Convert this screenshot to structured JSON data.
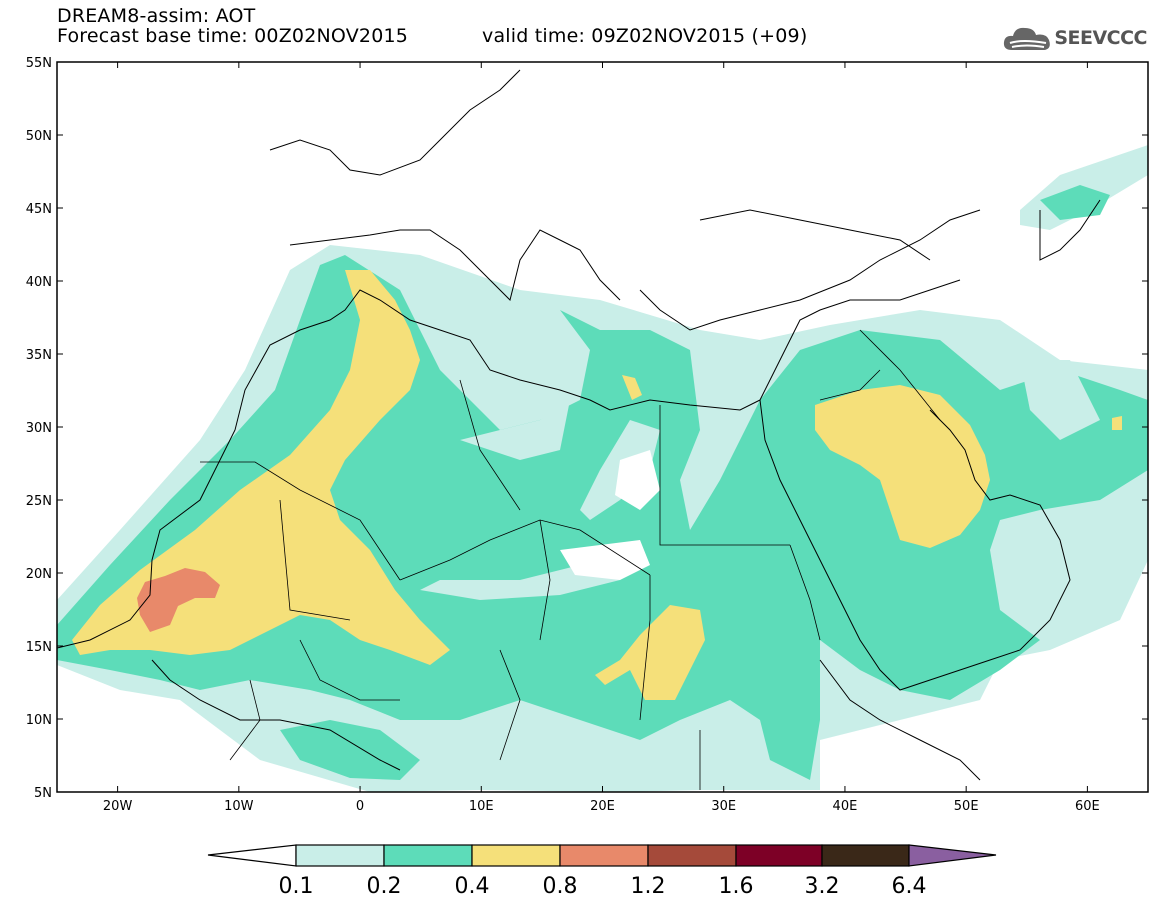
{
  "header": {
    "title_line1": "DREAM8-assim: AOT",
    "base_time": "Forecast base time: 00Z02NOV2015",
    "valid_time": "valid time: 09Z02NOV2015 (+09)",
    "logo_text": "SEEVCCC",
    "logo_icon": "cloud-icon"
  },
  "map": {
    "lon_range": [
      -25,
      65
    ],
    "lat_range": [
      5,
      55
    ],
    "lat_ticks": [
      "55N",
      "50N",
      "45N",
      "40N",
      "35N",
      "30N",
      "25N",
      "20N",
      "15N",
      "10N",
      "5N"
    ],
    "lon_ticks": [
      "20W",
      "10W",
      "0",
      "10E",
      "20E",
      "30E",
      "40E",
      "50E",
      "60E"
    ]
  },
  "colorbar": {
    "levels": [
      "0.1",
      "0.2",
      "0.4",
      "0.8",
      "1.2",
      "1.6",
      "3.2",
      "6.4"
    ],
    "colors": [
      "#ffffff",
      "#c9eee8",
      "#5ddcb9",
      "#f5e07a",
      "#e8896a",
      "#a54a3a",
      "#7d0026",
      "#3a2818",
      "#8a5fa0"
    ]
  }
}
